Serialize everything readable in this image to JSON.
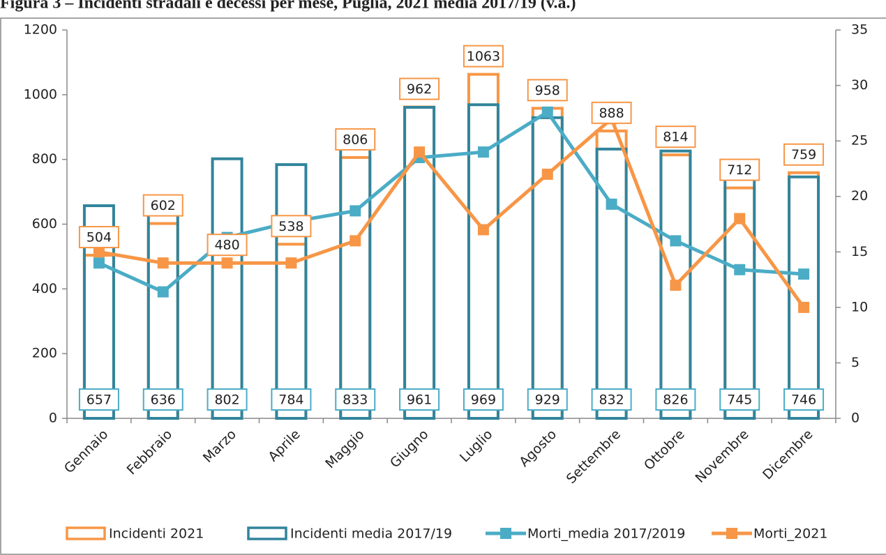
{
  "chart_data": {
    "type": "bar",
    "title": "Figura 3 – Incidenti stradali e decessi per mese, Puglia, 2021 media 2017/19 (v.a.)",
    "categories": [
      "Gennaio",
      "Febbraio",
      "Marzo",
      "Aprile",
      "Maggio",
      "Giugno",
      "Luglio",
      "Agosto",
      "Settembre",
      "Ottobre",
      "Novembre",
      "Dicembre"
    ],
    "series": [
      {
        "name": "Incidenti 2021",
        "type": "bar",
        "color": "#f79646",
        "values": [
          504,
          602,
          480,
          538,
          806,
          962,
          1063,
          958,
          888,
          814,
          712,
          759
        ]
      },
      {
        "name": "Incidenti media 2017/19",
        "type": "bar",
        "color": "#31849b",
        "values": [
          657,
          636,
          802,
          784,
          833,
          961,
          969,
          929,
          832,
          826,
          745,
          746
        ]
      },
      {
        "name": "Morti_media 2017/2019",
        "type": "line",
        "axis": "y2",
        "color": "#4bacc6",
        "values": [
          14,
          11.4,
          16.3,
          17.7,
          18.7,
          23.5,
          24,
          27.6,
          19.3,
          16,
          13.4,
          13
        ]
      },
      {
        "name": "Morti_2021",
        "type": "line",
        "axis": "y2",
        "color": "#f79646",
        "values": [
          15,
          14,
          14,
          14,
          16,
          24,
          17,
          22,
          27,
          12,
          18,
          10
        ]
      }
    ],
    "ylim": [
      0,
      1200
    ],
    "yticks": [
      0,
      200,
      400,
      600,
      800,
      1000,
      1200
    ],
    "y2lim": [
      0,
      35
    ],
    "y2ticks": [
      0,
      5,
      10,
      15,
      20,
      25,
      30,
      35
    ],
    "legend": "bottom"
  }
}
